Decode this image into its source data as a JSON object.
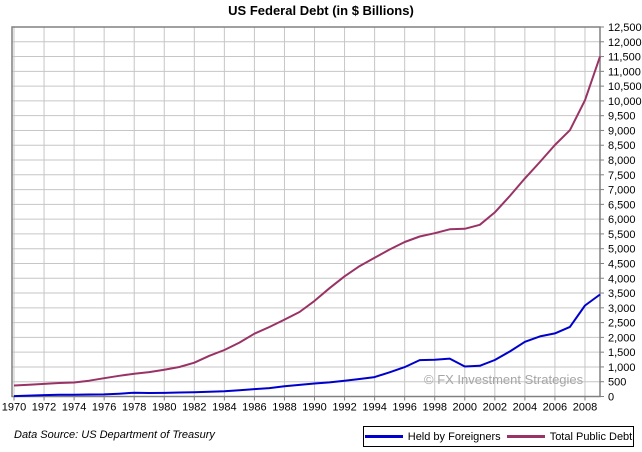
{
  "title": "US Federal Debt (in $ Billions)",
  "data_source": "Data Source: US Department of Treasury",
  "watermark": "© FX Investment Strategies",
  "legend": {
    "items": [
      {
        "label": "Held by Foreigners",
        "color": "#0000CC"
      },
      {
        "label": "Total Public Debt",
        "color": "#993366"
      }
    ]
  },
  "colors": {
    "grid": "#C6C6C6",
    "axis": "#808080",
    "watermark": "#A6A6A6",
    "held_by_foreigners": "#0000CC",
    "total_public_debt": "#993366"
  },
  "chart_data": {
    "type": "line",
    "title": "US Federal Debt (in $ Billions)",
    "xlabel": "",
    "ylabel": "",
    "ylim": [
      0,
      12500
    ],
    "y_tick_step": 500,
    "x_tick_step": 2,
    "grid": true,
    "y_axis_side": "right",
    "legend_position": "bottom-right",
    "x_tick_labels": [
      "1970",
      "1972",
      "1974",
      "1976",
      "1978",
      "1980",
      "1982",
      "1984",
      "1986",
      "1988",
      "1990",
      "1992",
      "1994",
      "1996",
      "1998",
      "2000",
      "2002",
      "2004",
      "2006",
      "2008"
    ],
    "y_tick_labels": [
      "0",
      "500",
      "1,000",
      "1,500",
      "2,000",
      "2,500",
      "3,000",
      "3,500",
      "4,000",
      "4,500",
      "5,000",
      "5,500",
      "6,000",
      "6,500",
      "7,000",
      "7,500",
      "8,000",
      "8,500",
      "9,000",
      "9,500",
      "10,000",
      "10,500",
      "11,000",
      "11,500",
      "12,000",
      "12,500"
    ],
    "x": [
      1970,
      1971,
      1972,
      1973,
      1974,
      1975,
      1976,
      1977,
      1978,
      1979,
      1980,
      1981,
      1982,
      1983,
      1984,
      1985,
      1986,
      1987,
      1988,
      1989,
      1990,
      1991,
      1992,
      1993,
      1994,
      1995,
      1996,
      1997,
      1998,
      1999,
      2000,
      2001,
      2002,
      2003,
      2004,
      2005,
      2006,
      2007,
      2008,
      2009
    ],
    "series": [
      {
        "name": "Held by Foreigners",
        "color": "#0000CC",
        "values": [
          14,
          32,
          49,
          59,
          57,
          66,
          70,
          95,
          130,
          120,
          122,
          136,
          141,
          160,
          176,
          212,
          251,
          283,
          346,
          394,
          440,
          477,
          535,
          591,
          656,
          820,
          993,
          1230,
          1244,
          1281,
          1015,
          1040,
          1235,
          1523,
          1849,
          2034,
          2134,
          2353,
          3077,
          3450
        ]
      },
      {
        "name": "Total Public Debt",
        "color": "#993366",
        "values": [
          371,
          398,
          427,
          458,
          475,
          533,
          620,
          699,
          772,
          827,
          908,
          998,
          1142,
          1377,
          1572,
          1823,
          2125,
          2350,
          2602,
          2857,
          3233,
          3665,
          4065,
          4411,
          4693,
          4974,
          5225,
          5413,
          5526,
          5656,
          5674,
          5807,
          6228,
          6783,
          7379,
          7933,
          8507,
          9008,
          10025,
          11500
        ]
      }
    ]
  }
}
